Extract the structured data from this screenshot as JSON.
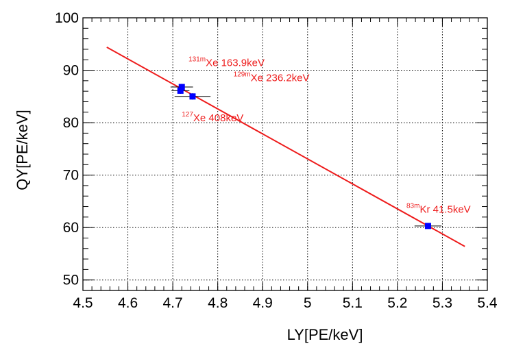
{
  "chart_data": {
    "type": "scatter",
    "title": "",
    "xlabel": "LY[PE/keV]",
    "ylabel": "QY[PE/keV]",
    "xlim": [
      4.5,
      5.4
    ],
    "ylim": [
      48,
      100
    ],
    "grid": true,
    "x_ticks": [
      4.5,
      4.6,
      4.7,
      4.8,
      4.9,
      5.0,
      5.1,
      5.2,
      5.3,
      5.4
    ],
    "x_tick_labels": [
      "4.5",
      "4.6",
      "4.7",
      "4.8",
      "4.9",
      "5",
      "5.1",
      "5.2",
      "5.3",
      "5.4"
    ],
    "y_ticks": [
      50,
      60,
      70,
      80,
      90,
      100
    ],
    "y_tick_labels": [
      "50",
      "60",
      "70",
      "80",
      "90",
      "100"
    ],
    "colors": {
      "line": "#ee1c1c",
      "marker": "#0000ff",
      "annotation": "#ee1c1c"
    },
    "points": [
      {
        "x": 4.72,
        "y": 86.8,
        "xerr": 0.025,
        "yerr": 0.6
      },
      {
        "x": 4.717,
        "y": 86.1,
        "xerr": 0.02,
        "yerr": 0.6
      },
      {
        "x": 4.744,
        "y": 85.0,
        "xerr": 0.04,
        "yerr": 0.6
      },
      {
        "x": 5.268,
        "y": 60.3,
        "xerr": 0.03,
        "yerr": 0.5
      }
    ],
    "fit_line": {
      "x": [
        4.553,
        5.35
      ],
      "y": [
        94.4,
        56.4
      ]
    },
    "annotations": [
      {
        "sup": "131m",
        "text": "Xe 163.9keV",
        "x": 4.735,
        "y": 90.8
      },
      {
        "sup": "129m",
        "text": "Xe 236.2keV",
        "x": 4.835,
        "y": 87.9
      },
      {
        "sup": "127",
        "text": "Xe 408keV",
        "x": 4.72,
        "y": 80.3
      },
      {
        "sup": "83m",
        "text": "Kr 41.5keV",
        "x": 5.22,
        "y": 62.8
      }
    ]
  }
}
